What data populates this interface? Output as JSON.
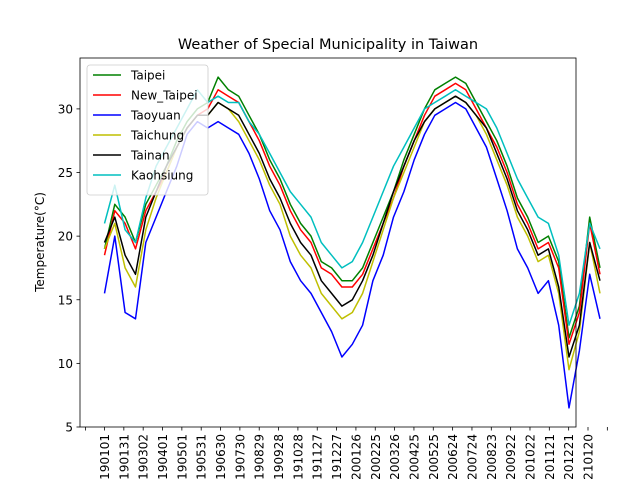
{
  "chart_data": {
    "type": "line",
    "title": "Weather of Special Municipality in Taiwan",
    "xlabel": "",
    "ylabel": "Temperature(°C)",
    "ylim": [
      5,
      34
    ],
    "yticks": [
      5,
      10,
      15,
      20,
      25,
      30
    ],
    "x_tick_labels": [
      "190101",
      "190131",
      "190302",
      "190401",
      "190501",
      "190531",
      "190630",
      "190730",
      "190829",
      "190928",
      "191028",
      "191127",
      "191227",
      "200126",
      "200225",
      "200326",
      "200425",
      "200525",
      "200624",
      "200724",
      "200823",
      "200922",
      "201022",
      "201121",
      "201221",
      "210120"
    ],
    "legend_position": "upper-left",
    "grid": false,
    "series": [
      {
        "name": "Taipei",
        "color": "#008000",
        "values": [
          19.0,
          22.5,
          21.5,
          19.5,
          22.5,
          24.0,
          25.5,
          27.5,
          29.0,
          30.0,
          30.5,
          32.5,
          31.5,
          31.0,
          29.5,
          28.0,
          26.0,
          24.5,
          22.5,
          21.0,
          20.0,
          18.0,
          17.5,
          16.5,
          16.5,
          17.5,
          19.5,
          21.5,
          23.5,
          26.0,
          28.0,
          30.0,
          31.5,
          32.0,
          32.5,
          32.0,
          30.5,
          29.0,
          27.5,
          25.5,
          23.0,
          21.5,
          19.5,
          20.0,
          18.0,
          12.0,
          14.5,
          21.5,
          17.5
        ]
      },
      {
        "name": "New_Taipei",
        "color": "#ff0000",
        "values": [
          18.5,
          22.0,
          21.0,
          19.0,
          22.0,
          23.5,
          25.0,
          27.0,
          28.5,
          29.5,
          30.0,
          31.5,
          31.0,
          30.5,
          29.0,
          27.5,
          25.5,
          24.0,
          22.0,
          20.5,
          19.5,
          17.5,
          17.0,
          16.0,
          16.0,
          17.0,
          19.0,
          21.0,
          23.0,
          25.5,
          27.5,
          29.5,
          31.0,
          31.5,
          32.0,
          31.5,
          30.0,
          28.5,
          27.0,
          25.0,
          22.5,
          21.0,
          19.0,
          19.5,
          17.5,
          11.5,
          14.0,
          21.0,
          17.0
        ]
      },
      {
        "name": "Taoyuan",
        "color": "#0000ff",
        "values": [
          15.5,
          20.0,
          14.0,
          13.5,
          19.5,
          21.5,
          23.5,
          25.5,
          28.0,
          29.0,
          28.5,
          29.0,
          28.5,
          28.0,
          26.5,
          24.5,
          22.0,
          20.5,
          18.0,
          16.5,
          15.5,
          14.0,
          12.5,
          10.5,
          11.5,
          13.0,
          16.5,
          18.5,
          21.5,
          23.5,
          26.0,
          28.0,
          29.5,
          30.0,
          30.5,
          30.0,
          28.5,
          27.0,
          24.5,
          22.0,
          19.0,
          17.5,
          15.5,
          16.5,
          13.0,
          6.5,
          11.0,
          17.0,
          13.5
        ]
      },
      {
        "name": "Taichung",
        "color": "#bfbf00",
        "values": [
          19.0,
          21.0,
          17.5,
          16.0,
          20.5,
          23.0,
          25.0,
          27.0,
          28.5,
          29.5,
          29.5,
          30.5,
          30.0,
          29.0,
          27.5,
          26.0,
          24.0,
          22.5,
          20.0,
          18.5,
          17.5,
          15.5,
          14.5,
          13.5,
          14.0,
          15.5,
          18.0,
          20.5,
          23.0,
          25.0,
          27.0,
          29.0,
          30.0,
          30.5,
          31.0,
          30.5,
          29.5,
          28.0,
          26.0,
          24.0,
          21.5,
          20.0,
          18.0,
          18.5,
          15.5,
          9.5,
          12.5,
          19.5,
          15.5
        ]
      },
      {
        "name": "Tainan",
        "color": "#000000",
        "values": [
          19.5,
          21.5,
          18.5,
          17.0,
          21.5,
          23.5,
          25.5,
          27.0,
          28.5,
          29.5,
          29.5,
          30.5,
          30.0,
          29.5,
          28.0,
          26.5,
          24.5,
          23.0,
          21.0,
          19.5,
          18.5,
          16.5,
          15.5,
          14.5,
          15.0,
          16.5,
          18.5,
          21.0,
          23.5,
          25.5,
          27.5,
          29.0,
          30.0,
          30.5,
          31.0,
          30.5,
          29.5,
          28.5,
          26.5,
          24.5,
          22.0,
          20.5,
          18.5,
          19.0,
          16.0,
          10.5,
          13.0,
          19.5,
          16.5
        ]
      },
      {
        "name": "Kaohsiung",
        "color": "#00bfbf",
        "values": [
          21.0,
          24.0,
          20.5,
          19.5,
          23.0,
          25.5,
          27.0,
          28.5,
          30.0,
          31.5,
          30.5,
          31.0,
          30.5,
          30.5,
          29.0,
          28.0,
          26.5,
          25.0,
          23.5,
          22.5,
          21.5,
          19.5,
          18.5,
          17.5,
          18.0,
          19.5,
          21.5,
          23.5,
          25.5,
          27.0,
          28.5,
          30.0,
          30.5,
          31.0,
          31.5,
          31.0,
          30.5,
          30.0,
          28.5,
          26.5,
          24.5,
          23.0,
          21.5,
          21.0,
          18.5,
          13.0,
          15.5,
          21.0,
          19.0
        ]
      }
    ]
  }
}
